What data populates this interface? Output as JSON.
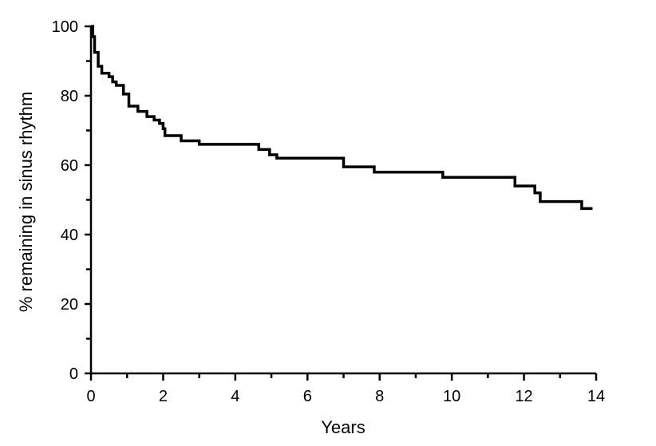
{
  "chart_data": {
    "type": "line",
    "step": true,
    "xlabel": "Years",
    "ylabel": "% remaining in sinus rhythm",
    "xlim": [
      0,
      14
    ],
    "ylim": [
      0,
      100
    ],
    "xticks": [
      0,
      2,
      4,
      6,
      8,
      10,
      12,
      14
    ],
    "xticks_minor": [
      1,
      3,
      5,
      7,
      9,
      11,
      13
    ],
    "yticks": [
      0,
      20,
      40,
      60,
      80,
      100
    ],
    "yticks_minor": [
      10,
      30,
      50,
      70,
      90
    ],
    "grid": false,
    "legend": "none",
    "color": "#000000",
    "series": [
      {
        "x": [
          0,
          0.05,
          0.1,
          0.2,
          0.3,
          0.5,
          0.6,
          0.7,
          0.9,
          1.05,
          1.3,
          1.55,
          1.75,
          1.9,
          2.0,
          2.05,
          2.5,
          3.0,
          4.65,
          4.95,
          5.15,
          7.0,
          7.85,
          9.75,
          11.75,
          12.3,
          12.45,
          13.6,
          13.9
        ],
        "y": [
          100,
          97,
          92.5,
          88.5,
          86.5,
          85.5,
          84,
          83,
          80.5,
          77,
          75.5,
          74,
          73,
          72,
          70.5,
          68.5,
          67,
          66,
          64.5,
          63,
          62,
          59.5,
          58,
          56.5,
          54,
          52,
          49.5,
          47.5,
          47.5
        ]
      }
    ]
  }
}
